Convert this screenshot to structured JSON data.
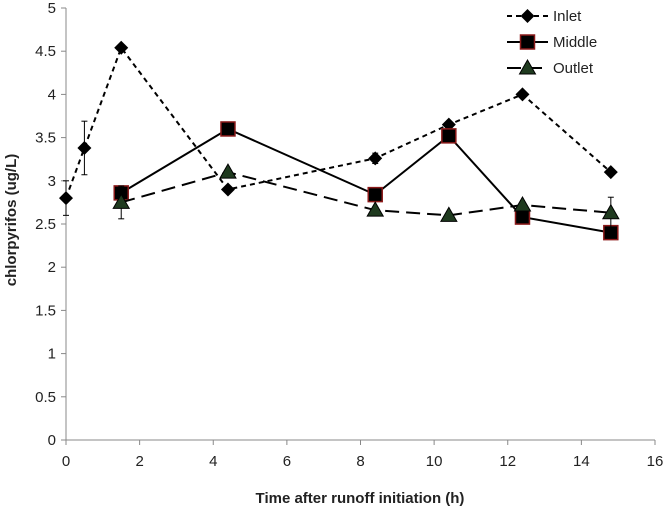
{
  "chart_data": {
    "type": "line",
    "title": "",
    "xlabel": "Time after runoff initiation (h)",
    "ylabel": "chlorpyrifos (ug/L)",
    "xlim": [
      0,
      16
    ],
    "ylim": [
      0,
      5
    ],
    "x_ticks": [
      "0",
      "2",
      "4",
      "6",
      "8",
      "10",
      "12",
      "14",
      "16"
    ],
    "y_ticks": [
      "0",
      "0.5",
      "1",
      "1.5",
      "2",
      "2.5",
      "3",
      "3.5",
      "4",
      "4.5",
      "5"
    ],
    "grid": "none",
    "legend_position": "top-right",
    "series": [
      {
        "name": "Inlet",
        "marker": "diamond",
        "line_style": "short-dash",
        "color": "#000000",
        "points": [
          {
            "x": 0,
            "y": 2.8,
            "err": 0.2
          },
          {
            "x": 0.5,
            "y": 3.38,
            "err": 0.31
          },
          {
            "x": 1.5,
            "y": 4.54,
            "err": 0
          },
          {
            "x": 4.4,
            "y": 2.9,
            "err": 0
          },
          {
            "x": 8.4,
            "y": 3.26,
            "err": 0.06
          },
          {
            "x": 10.4,
            "y": 3.65,
            "err": 0
          },
          {
            "x": 12.4,
            "y": 4.0,
            "err": 0
          },
          {
            "x": 14.8,
            "y": 3.1,
            "err": 0
          }
        ]
      },
      {
        "name": "Middle",
        "marker": "square",
        "line_style": "solid",
        "color": "#000000",
        "marker_edge": "#8b1a1a",
        "points": [
          {
            "x": 1.5,
            "y": 2.86,
            "err": 0.07
          },
          {
            "x": 4.4,
            "y": 3.6,
            "err": 0
          },
          {
            "x": 8.4,
            "y": 2.84,
            "err": 0
          },
          {
            "x": 10.4,
            "y": 3.52,
            "err": 0
          },
          {
            "x": 12.4,
            "y": 2.58,
            "err": 0
          },
          {
            "x": 14.8,
            "y": 2.4,
            "err": 0
          }
        ]
      },
      {
        "name": "Outlet",
        "marker": "triangle",
        "line_style": "long-dash",
        "color": "#000000",
        "marker_fill": "#1f3a1f",
        "points": [
          {
            "x": 1.5,
            "y": 2.75,
            "err": 0.19
          },
          {
            "x": 4.4,
            "y": 3.1,
            "err": 0
          },
          {
            "x": 8.4,
            "y": 2.66,
            "err": 0
          },
          {
            "x": 10.4,
            "y": 2.6,
            "err": 0
          },
          {
            "x": 12.4,
            "y": 2.72,
            "err": 0
          },
          {
            "x": 14.8,
            "y": 2.63,
            "err": 0.18
          }
        ]
      }
    ]
  }
}
